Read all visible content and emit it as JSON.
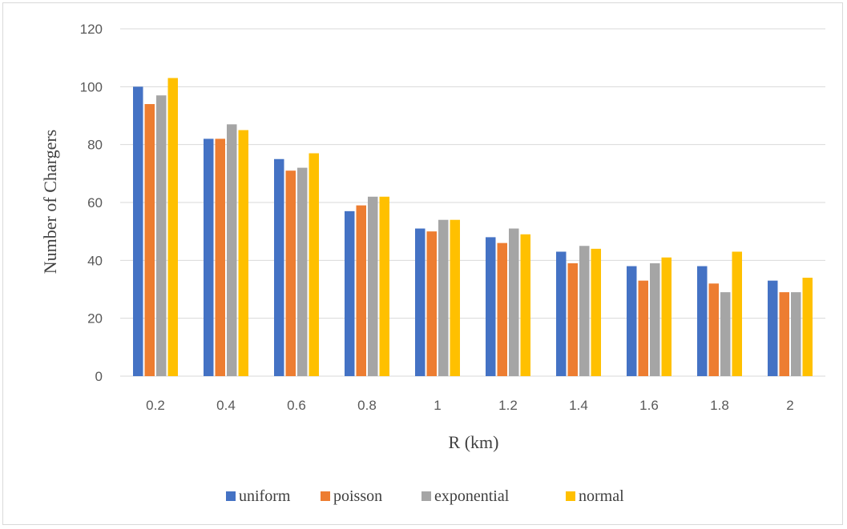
{
  "chart_data": {
    "type": "bar",
    "title": "",
    "xlabel": "R (km)",
    "ylabel": "Number of Chargers",
    "categories": [
      "0.2",
      "0.4",
      "0.6",
      "0.8",
      "1",
      "1.2",
      "1.4",
      "1.6",
      "1.8",
      "2"
    ],
    "ylim": [
      0,
      120
    ],
    "yticks": [
      "0",
      "20",
      "40",
      "60",
      "80",
      "100",
      "120"
    ],
    "grid": true,
    "legend_position": "bottom",
    "series": [
      {
        "name": "uniform",
        "color": "#4472c4",
        "values": [
          100,
          82,
          75,
          57,
          51,
          48,
          43,
          38,
          38,
          33
        ]
      },
      {
        "name": "poisson",
        "color": "#ed7d31",
        "values": [
          94,
          82,
          71,
          59,
          50,
          46,
          39,
          33,
          32,
          29
        ]
      },
      {
        "name": "exponential",
        "color": "#a5a5a5",
        "values": [
          97,
          87,
          72,
          62,
          54,
          51,
          45,
          39,
          29,
          29
        ]
      },
      {
        "name": "normal",
        "color": "#ffc000",
        "values": [
          103,
          85,
          77,
          62,
          54,
          49,
          44,
          41,
          43,
          34
        ]
      }
    ]
  }
}
